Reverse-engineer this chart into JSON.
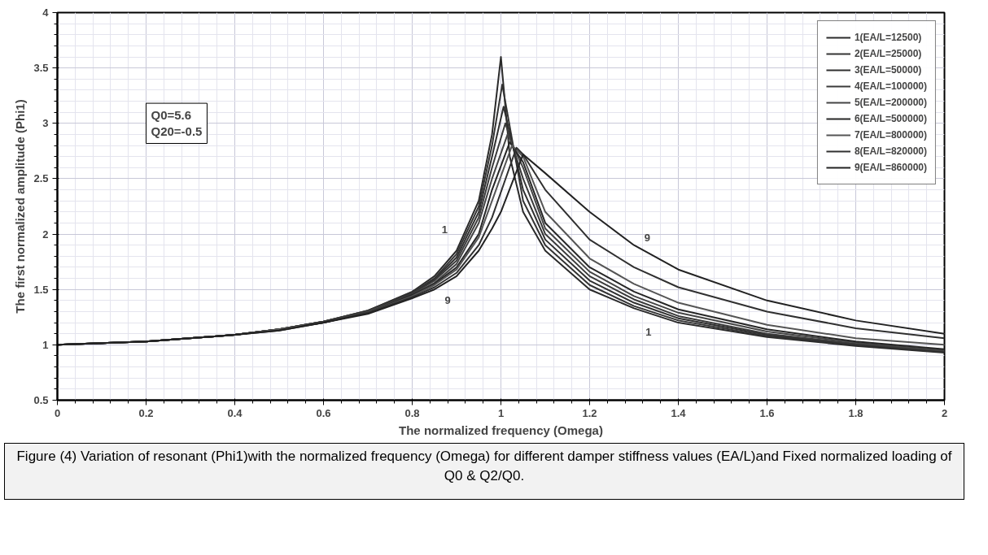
{
  "chart_data": {
    "type": "line",
    "xlabel": "The normalized frequency (Omega)",
    "ylabel": "The first normalized amplitude (Phi1)",
    "xlim": [
      0,
      2
    ],
    "xticks": [
      0,
      0.2,
      0.4,
      0.6,
      0.8,
      1,
      1.2,
      1.4,
      1.6,
      1.8,
      2
    ],
    "ylim": [
      0.5,
      4
    ],
    "yticks": [
      0.5,
      1,
      1.5,
      2,
      2.5,
      3,
      3.5,
      4
    ],
    "grid": true,
    "legend": "top right",
    "line_style": "solid",
    "annotations": [
      {
        "text": "Q0=5.6\nQ20=-0.5"
      },
      "1",
      "9",
      "9",
      "1",
      {
        "text": "Figure (4) Variation of resonant (Phi1)with the normalized frequency (Omega) for different damper stiffness values (EA/L)and Fixed normalized loading of Q0 & Q2/Q0."
      }
    ],
    "series": [
      {
        "name": "1(EA/L=12500)",
        "color": "#2a2a2a",
        "x": [
          0,
          0.2,
          0.4,
          0.5,
          0.6,
          0.7,
          0.8,
          0.85,
          0.9,
          0.95,
          0.98,
          1.0,
          1.02,
          1.05,
          1.1,
          1.2,
          1.3,
          1.4,
          1.6,
          1.8,
          2.0
        ],
        "values": [
          1,
          1.03,
          1.09,
          1.14,
          1.21,
          1.31,
          1.48,
          1.62,
          1.85,
          2.3,
          2.9,
          3.6,
          2.7,
          2.2,
          1.85,
          1.5,
          1.33,
          1.2,
          1.07,
          0.99,
          0.93
        ]
      },
      {
        "name": "2(EA/L=25000)",
        "color": "#333333",
        "x": [
          0,
          0.2,
          0.4,
          0.5,
          0.6,
          0.7,
          0.8,
          0.85,
          0.9,
          0.95,
          0.98,
          1.003,
          1.05,
          1.1,
          1.2,
          1.3,
          1.4,
          1.6,
          1.8,
          2.0
        ],
        "values": [
          1,
          1.03,
          1.09,
          1.14,
          1.21,
          1.31,
          1.47,
          1.6,
          1.82,
          2.25,
          2.8,
          3.35,
          2.3,
          1.9,
          1.54,
          1.35,
          1.22,
          1.08,
          1.0,
          0.935
        ]
      },
      {
        "name": "3(EA/L=50000)",
        "color": "#2f2f2f",
        "x": [
          0,
          0.2,
          0.4,
          0.5,
          0.6,
          0.7,
          0.8,
          0.85,
          0.9,
          0.95,
          0.98,
          1.006,
          1.05,
          1.1,
          1.2,
          1.3,
          1.4,
          1.6,
          1.8,
          2.0
        ],
        "values": [
          1,
          1.03,
          1.09,
          1.14,
          1.21,
          1.3,
          1.46,
          1.59,
          1.79,
          2.2,
          2.7,
          3.15,
          2.4,
          1.95,
          1.58,
          1.38,
          1.24,
          1.09,
          1.0,
          0.94
        ]
      },
      {
        "name": "4(EA/L=100000)",
        "color": "#3a3a3a",
        "x": [
          0,
          0.2,
          0.4,
          0.5,
          0.6,
          0.7,
          0.8,
          0.85,
          0.9,
          0.95,
          0.98,
          1.01,
          1.05,
          1.1,
          1.2,
          1.3,
          1.4,
          1.6,
          1.8,
          2.0
        ],
        "values": [
          1,
          1.03,
          1.09,
          1.14,
          1.21,
          1.3,
          1.46,
          1.58,
          1.76,
          2.15,
          2.6,
          3.0,
          2.5,
          2.0,
          1.62,
          1.41,
          1.26,
          1.1,
          1.01,
          0.945
        ]
      },
      {
        "name": "5(EA/L=200000)",
        "color": "#444444",
        "x": [
          0,
          0.2,
          0.4,
          0.5,
          0.6,
          0.7,
          0.8,
          0.85,
          0.9,
          0.95,
          0.98,
          1.015,
          1.05,
          1.1,
          1.2,
          1.3,
          1.4,
          1.6,
          1.8,
          2.0
        ],
        "values": [
          1,
          1.03,
          1.09,
          1.14,
          1.2,
          1.3,
          1.45,
          1.56,
          1.73,
          2.1,
          2.5,
          2.9,
          2.6,
          2.05,
          1.66,
          1.44,
          1.29,
          1.12,
          1.02,
          0.95
        ]
      },
      {
        "name": "6(EA/L=500000)",
        "color": "#262626",
        "x": [
          0,
          0.2,
          0.4,
          0.5,
          0.6,
          0.7,
          0.8,
          0.85,
          0.9,
          0.95,
          0.98,
          1.02,
          1.05,
          1.1,
          1.2,
          1.3,
          1.4,
          1.6,
          1.8,
          2.0
        ],
        "values": [
          1,
          1.03,
          1.09,
          1.14,
          1.2,
          1.29,
          1.45,
          1.55,
          1.7,
          2.0,
          2.4,
          2.83,
          2.65,
          2.1,
          1.7,
          1.48,
          1.32,
          1.14,
          1.03,
          0.96
        ]
      },
      {
        "name": "7(EA/L=800000)",
        "color": "#555555",
        "x": [
          0,
          0.2,
          0.4,
          0.5,
          0.6,
          0.7,
          0.8,
          0.85,
          0.9,
          0.95,
          0.98,
          1.025,
          1.05,
          1.1,
          1.2,
          1.3,
          1.4,
          1.6,
          1.8,
          2.0
        ],
        "values": [
          1,
          1.03,
          1.09,
          1.14,
          1.2,
          1.29,
          1.44,
          1.54,
          1.68,
          1.97,
          2.3,
          2.8,
          2.7,
          2.2,
          1.78,
          1.55,
          1.38,
          1.18,
          1.06,
          1.0
        ]
      },
      {
        "name": "8(EA/L=820000)",
        "color": "#303030",
        "x": [
          0,
          0.2,
          0.4,
          0.5,
          0.6,
          0.7,
          0.8,
          0.85,
          0.9,
          0.95,
          0.98,
          1.035,
          1.05,
          1.1,
          1.2,
          1.3,
          1.4,
          1.6,
          1.8,
          2.0
        ],
        "values": [
          1,
          1.03,
          1.09,
          1.13,
          1.2,
          1.29,
          1.43,
          1.52,
          1.65,
          1.9,
          2.15,
          2.78,
          2.72,
          2.4,
          1.95,
          1.7,
          1.52,
          1.3,
          1.15,
          1.06
        ]
      },
      {
        "name": "9(EA/L=860000)",
        "color": "#222222",
        "x": [
          0,
          0.2,
          0.4,
          0.5,
          0.6,
          0.7,
          0.8,
          0.85,
          0.9,
          0.95,
          0.98,
          1.0,
          1.05,
          1.1,
          1.2,
          1.3,
          1.4,
          1.6,
          1.8,
          2.0
        ],
        "values": [
          1,
          1.03,
          1.09,
          1.13,
          1.2,
          1.28,
          1.42,
          1.5,
          1.62,
          1.85,
          2.05,
          2.2,
          2.72,
          2.55,
          2.2,
          1.9,
          1.68,
          1.4,
          1.22,
          1.1
        ]
      }
    ]
  }
}
